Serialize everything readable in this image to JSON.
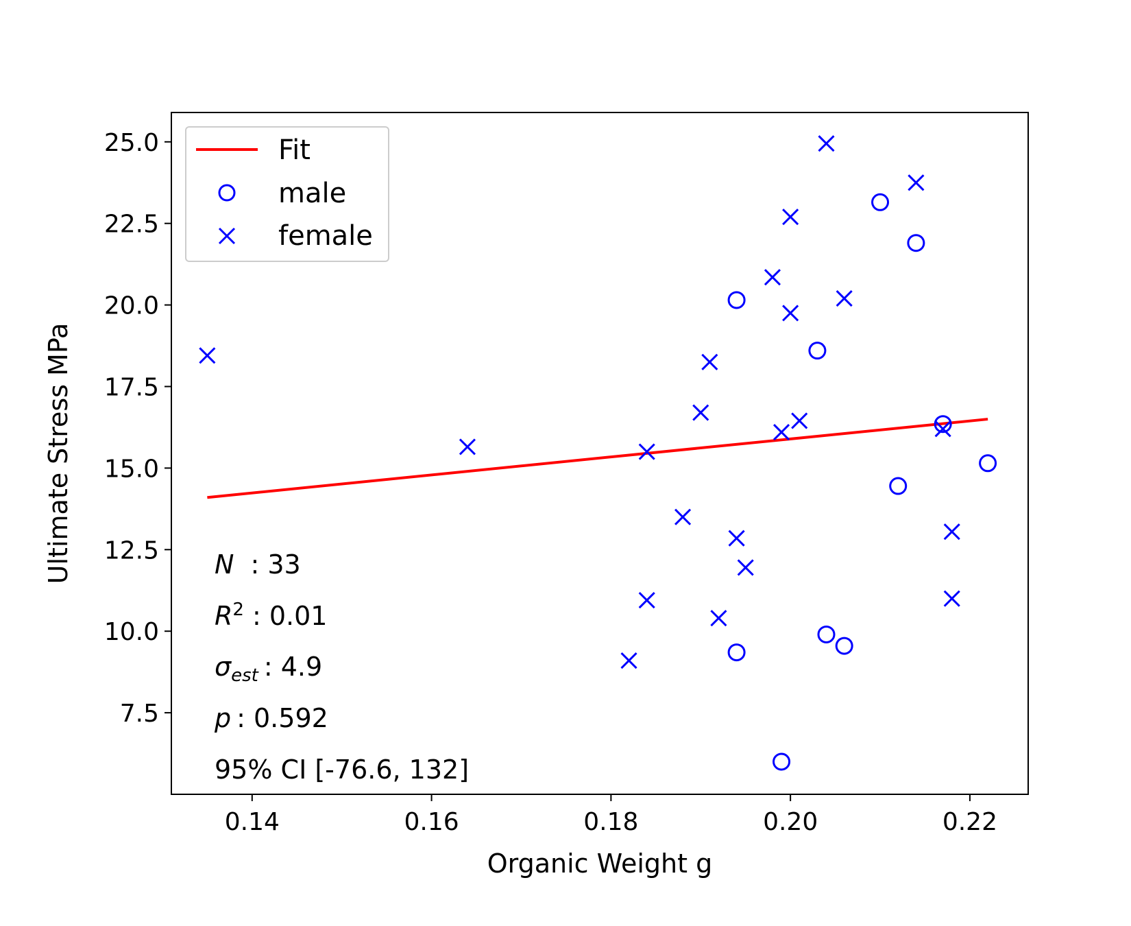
{
  "chart_data": {
    "type": "scatter",
    "title": "",
    "xlabel": "Organic Weight g",
    "ylabel": "Ultimate Stress MPa",
    "xlim": [
      0.131,
      0.2265
    ],
    "ylim": [
      5.0,
      25.9
    ],
    "xticks": [
      0.14,
      0.16,
      0.18,
      0.2,
      0.22
    ],
    "xtick_labels": [
      "0.14",
      "0.16",
      "0.18",
      "0.20",
      "0.22"
    ],
    "yticks": [
      7.5,
      10.0,
      12.5,
      15.0,
      17.5,
      20.0,
      22.5,
      25.0
    ],
    "ytick_labels": [
      "7.5",
      "10.0",
      "12.5",
      "15.0",
      "17.5",
      "20.0",
      "22.5",
      "25.0"
    ],
    "grid": false,
    "legend_position": "top-left",
    "colors": {
      "fit": "#ff0000",
      "points": "#0000ff"
    },
    "fit": {
      "name": "Fit",
      "x": [
        0.135,
        0.222
      ],
      "y": [
        14.1,
        16.5
      ]
    },
    "series": [
      {
        "name": "male",
        "marker": "circle",
        "points": [
          [
            0.194,
            20.15
          ],
          [
            0.21,
            23.15
          ],
          [
            0.214,
            21.9
          ],
          [
            0.203,
            18.6
          ],
          [
            0.217,
            16.35
          ],
          [
            0.222,
            15.15
          ],
          [
            0.212,
            14.45
          ],
          [
            0.204,
            9.9
          ],
          [
            0.206,
            9.55
          ],
          [
            0.194,
            9.35
          ],
          [
            0.199,
            6.0
          ]
        ]
      },
      {
        "name": "female",
        "marker": "x",
        "points": [
          [
            0.135,
            18.45
          ],
          [
            0.164,
            15.65
          ],
          [
            0.184,
            15.5
          ],
          [
            0.188,
            13.5
          ],
          [
            0.184,
            10.95
          ],
          [
            0.182,
            9.1
          ],
          [
            0.19,
            16.7
          ],
          [
            0.191,
            18.25
          ],
          [
            0.192,
            10.4
          ],
          [
            0.194,
            12.85
          ],
          [
            0.195,
            11.95
          ],
          [
            0.198,
            20.85
          ],
          [
            0.199,
            16.1
          ],
          [
            0.2,
            22.7
          ],
          [
            0.2,
            19.75
          ],
          [
            0.201,
            16.45
          ],
          [
            0.204,
            24.95
          ],
          [
            0.206,
            20.2
          ],
          [
            0.214,
            23.75
          ],
          [
            0.217,
            16.2
          ],
          [
            0.218,
            13.05
          ],
          [
            0.218,
            11.0
          ]
        ]
      }
    ],
    "annotations": {
      "n": {
        "symbol": "N",
        "value": ": 33"
      },
      "r2": {
        "symbol": "R",
        "sup": "2",
        "value": ": 0.01"
      },
      "sigma": {
        "symbol": "σ",
        "sub": "est",
        "value": ": 4.9"
      },
      "p": {
        "symbol": "p",
        "value": ": 0.592"
      },
      "ci": {
        "text": "95% CI [-76.6,  132]"
      }
    }
  }
}
